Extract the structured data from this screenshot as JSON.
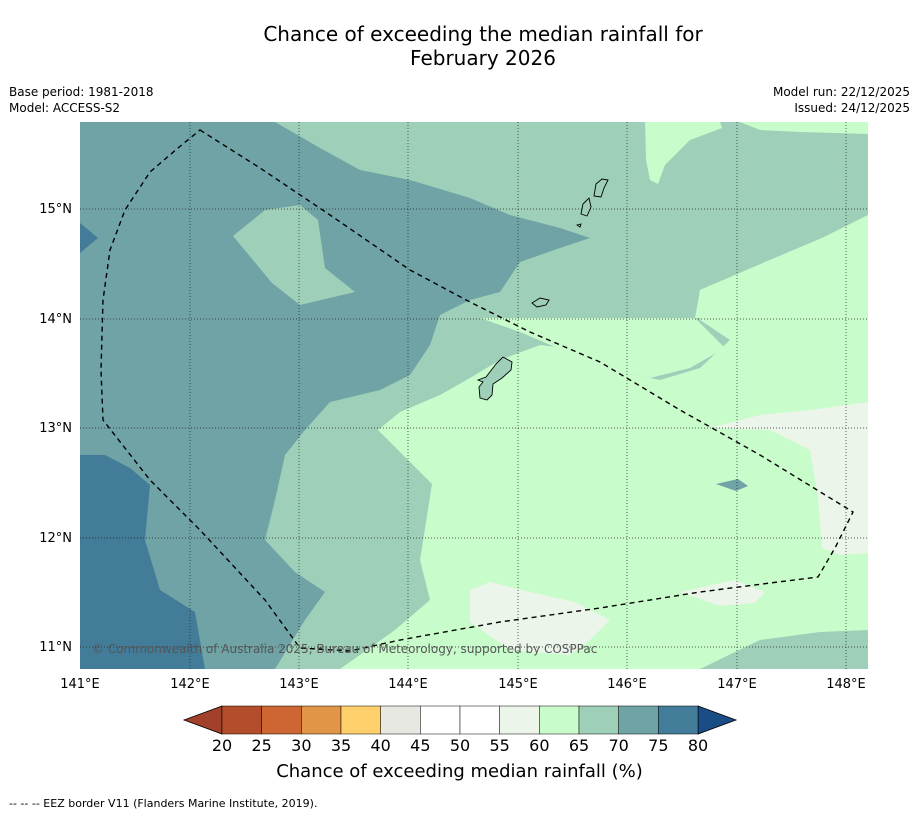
{
  "title_line1": "Chance of exceeding the median rainfall for",
  "title_line2": "February 2026",
  "base_period": "Base period: 1981-2018",
  "model": "Model: ACCESS-S2",
  "model_run": "Model run: 22/12/2025",
  "issued": "Issued: 24/12/2025",
  "copyright": "© Commonwealth of Australia 2025, Bureau of Meteorology, supported by COSPPac",
  "lon_labels": [
    "141°E",
    "142°E",
    "143°E",
    "144°E",
    "145°E",
    "146°E",
    "147°E",
    "148°E"
  ],
  "lat_labels": [
    "15°N",
    "14°N",
    "13°N",
    "12°N",
    "11°N"
  ],
  "colorbar": {
    "title": "Chance of exceeding median rainfall (%)",
    "ticks": [
      "20",
      "25",
      "30",
      "35",
      "40",
      "45",
      "50",
      "55",
      "60",
      "65",
      "70",
      "75",
      "80"
    ],
    "under_color": "#a2402a",
    "over_color": "#1a4d85",
    "colors": [
      "#b34d2b",
      "#cd6633",
      "#e09547",
      "#fdd06b",
      "#e8e8e3",
      "#ffffff",
      "#ffffff",
      "#ebf5ea",
      "#c9fccb",
      "#9ecfb9",
      "#6fa3a5",
      "#437c99"
    ]
  },
  "footnote": "--  --  -- EEZ border V11 (Flanders Marine Institute, 2019)."
}
